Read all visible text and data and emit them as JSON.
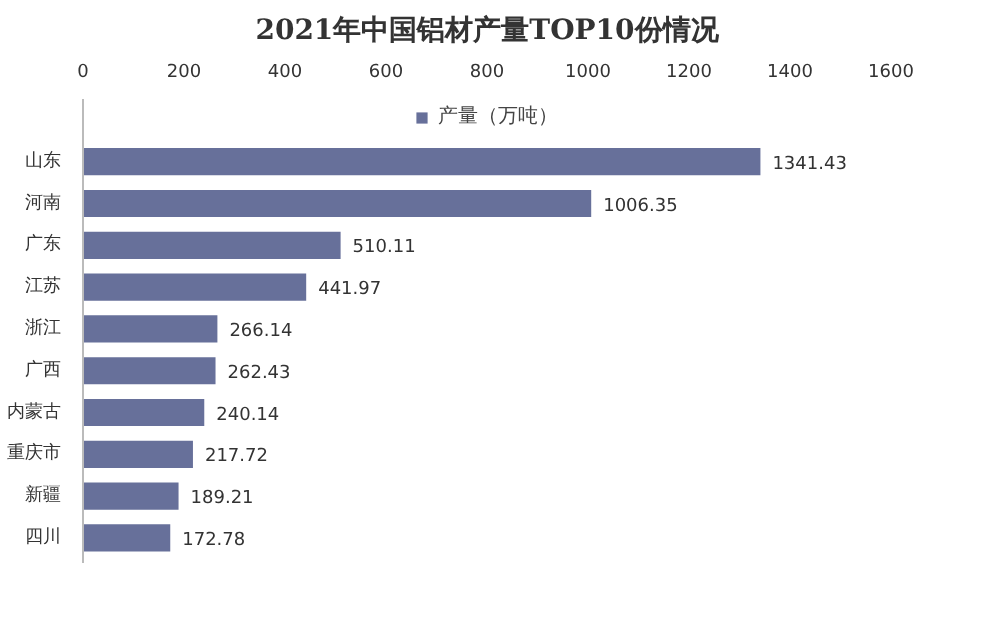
{
  "chart_data": {
    "type": "bar",
    "orientation": "horizontal",
    "title": "2021年中国铝材产量TOP10份情况",
    "categories": [
      "山东",
      "河南",
      "广东",
      "江苏",
      "浙江",
      "广西",
      "内蒙古",
      "重庆市",
      "新疆",
      "四川"
    ],
    "series": [
      {
        "name": "产量（万吨）",
        "color": "#67709a",
        "values": [
          1341.43,
          1006.35,
          510.11,
          441.97,
          266.14,
          262.43,
          240.14,
          217.72,
          189.21,
          172.78
        ]
      }
    ],
    "xlim": [
      0,
      1600
    ],
    "xticks": [
      0,
      200,
      400,
      600,
      800,
      1000,
      1200,
      1400,
      1600
    ],
    "data_labels": true,
    "legend": "top",
    "grid": false
  }
}
